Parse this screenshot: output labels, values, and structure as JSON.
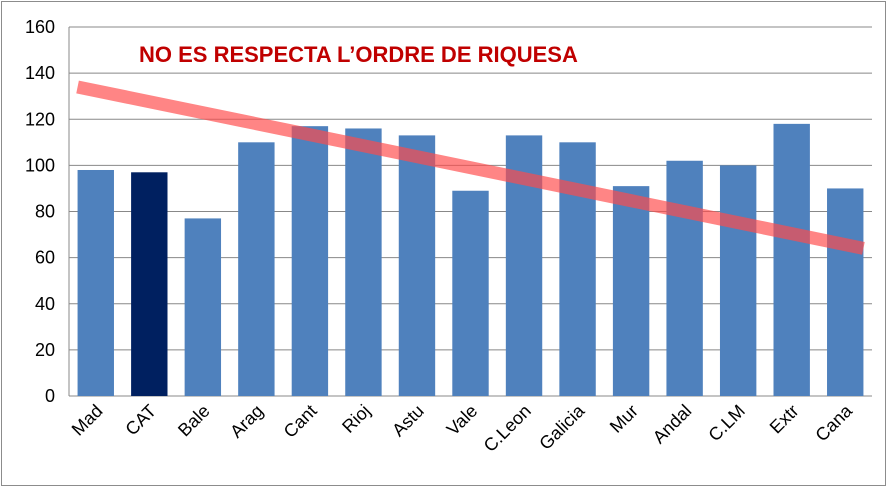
{
  "chart_data": {
    "type": "bar",
    "categories": [
      "Mad",
      "CAT",
      "Bale",
      "Arag",
      "Cant",
      "Rioj",
      "Astu",
      "Vale",
      "C.Leon",
      "Galicia",
      "Mur",
      "Andal",
      "C.LM",
      "Extr",
      "Cana"
    ],
    "values": [
      98,
      97,
      77,
      110,
      117,
      116,
      113,
      89,
      113,
      110,
      91,
      102,
      100,
      118,
      90
    ],
    "highlight_category": "CAT",
    "ylim": [
      0,
      160
    ],
    "yticks": [
      0,
      20,
      40,
      60,
      80,
      100,
      120,
      140,
      160
    ],
    "grid": true,
    "legend": "none",
    "annotation": {
      "text": "NO ES RESPECTA L’ORDRE DE RIQUESA",
      "trend_line": {
        "from": {
          "category": "Mad",
          "y": 134
        },
        "to": {
          "category": "Cana",
          "y": 64
        }
      }
    }
  },
  "colors": {
    "bar": "#4f81bd",
    "highlight_bar": "#002060",
    "trend_line": "#ff4b4b",
    "annotation_text": "#c00000",
    "grid": "#888888"
  }
}
